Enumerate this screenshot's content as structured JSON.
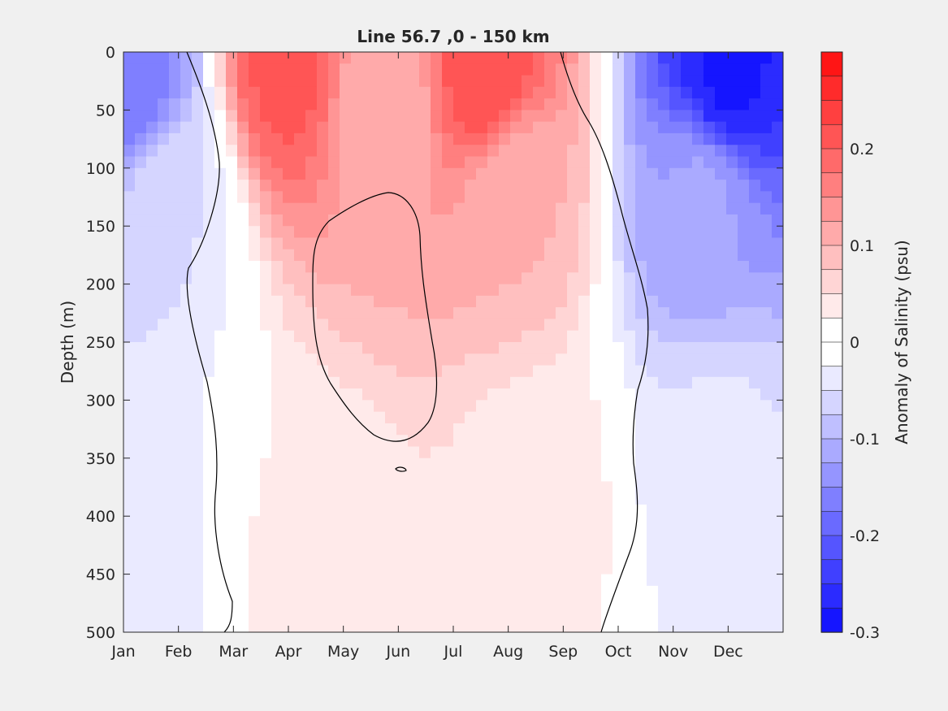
{
  "chart_data": {
    "type": "heatmap",
    "title": "Line 56.7 ,0 - 150 km",
    "xlabel": "",
    "ylabel": "Depth (m)",
    "colorbar_label": "Anomaly of Salinity (psu)",
    "x_categories": [
      "Jan",
      "Feb",
      "Mar",
      "Apr",
      "May",
      "Jun",
      "Jul",
      "Aug",
      "Sep",
      "Oct",
      "Nov",
      "Dec"
    ],
    "xlim": [
      1,
      13
    ],
    "ylim": [
      0,
      500
    ],
    "y_reversed": true,
    "y_ticks": [
      0,
      50,
      100,
      150,
      200,
      250,
      300,
      350,
      400,
      450,
      500
    ],
    "colorbar_range": [
      -0.3,
      0.3
    ],
    "colorbar_step": 0.025,
    "colorbar_ticks": [
      0.2,
      0.1,
      0,
      -0.1,
      -0.2,
      -0.3
    ],
    "colormap": {
      "negative": "#0000ff",
      "zero": "#ffffff",
      "positive": "#ff0000"
    },
    "grid": false,
    "zero_contour": "black",
    "field_centers": [
      {
        "month": 1.2,
        "depth": 30,
        "anomaly": -0.17
      },
      {
        "month": 1.8,
        "depth": 120,
        "anomaly": -0.05
      },
      {
        "month": 4.0,
        "depth": 10,
        "anomaly": 0.21
      },
      {
        "month": 5.7,
        "depth": 40,
        "anomaly": 0.1
      },
      {
        "month": 7.6,
        "depth": 20,
        "anomaly": 0.22
      },
      {
        "month": 8.1,
        "depth": 120,
        "anomaly": 0.1
      },
      {
        "month": 8.5,
        "depth": 380,
        "anomaly": 0.04
      },
      {
        "month": 12.0,
        "depth": 15,
        "anomaly": -0.28
      },
      {
        "month": 11.5,
        "depth": 130,
        "anomaly": -0.12
      },
      {
        "month": 11.8,
        "depth": 350,
        "anomaly": -0.045
      },
      {
        "month": 1.4,
        "depth": 420,
        "anomaly": -0.035
      },
      {
        "month": 4.3,
        "depth": 440,
        "anomaly": 0.03
      }
    ]
  }
}
